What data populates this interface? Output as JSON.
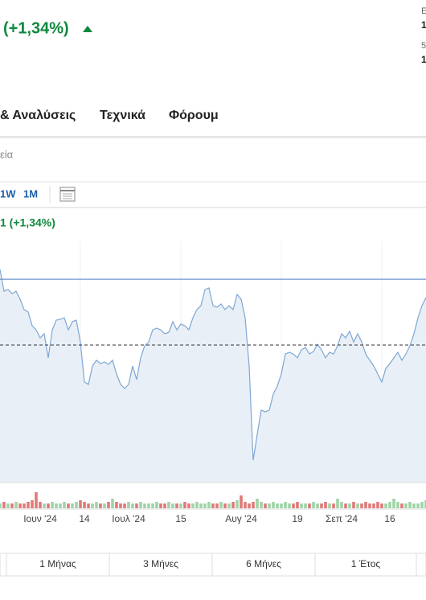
{
  "header": {
    "change": "(+1,34%)",
    "side": [
      "Ε",
      "1",
      "5",
      "1"
    ]
  },
  "tabs": [
    "& Αναλύσεις",
    "Τεχνικά",
    "Φόρουμ"
  ],
  "breadcrumb": "εία",
  "periods": [
    "1W",
    "1M"
  ],
  "chart_change": "1 (+1,34%)",
  "chart_data": {
    "type": "area",
    "categories": [
      null,
      null,
      null,
      null,
      null,
      null,
      null,
      null,
      null,
      null,
      "Ιουν '24",
      null,
      null,
      null,
      null,
      null,
      null,
      null,
      null,
      null,
      null,
      "14",
      null,
      null,
      null,
      null,
      null,
      null,
      null,
      null,
      null,
      null,
      "Ιουλ '24",
      null,
      null,
      null,
      null,
      null,
      null,
      null,
      null,
      null,
      null,
      null,
      null,
      "15",
      null,
      null,
      null,
      null,
      null,
      null,
      null,
      null,
      null,
      null,
      null,
      null,
      null,
      null,
      "Αυγ '24",
      null,
      null,
      null,
      null,
      null,
      null,
      null,
      null,
      null,
      null,
      null,
      null,
      null,
      "19",
      null,
      null,
      null,
      null,
      null,
      null,
      null,
      null,
      null,
      null,
      "Σεπ '24",
      null,
      null,
      null,
      null,
      null,
      null,
      null,
      null,
      null,
      null,
      null,
      "16",
      null,
      null,
      null,
      null,
      null,
      null,
      null,
      null,
      null
    ],
    "series": [
      {
        "color": "#7fa7d4",
        "fill": "#e8eff7",
        "values": [
          88.3,
          79.3,
          80,
          78.3,
          79.3,
          76,
          71.7,
          70.7,
          65,
          63.3,
          60,
          61.7,
          51.7,
          63.3,
          67.3,
          67.7,
          68.3,
          63.3,
          66.7,
          67.3,
          58.3,
          41.7,
          40.7,
          48.3,
          50.7,
          49.3,
          50,
          49,
          50.7,
          45,
          40.7,
          39,
          40.7,
          48.3,
          42.7,
          51.7,
          56.7,
          58.3,
          63.3,
          64,
          63.3,
          61.7,
          62.3,
          66.7,
          63.3,
          65.7,
          65,
          63.3,
          68.3,
          71.7,
          73.3,
          80,
          80.7,
          73.3,
          72.7,
          74,
          71.7,
          73.3,
          71.7,
          78,
          76,
          68.3,
          48.3,
          9.3,
          20,
          30,
          29.3,
          30,
          36.7,
          40,
          45,
          53.3,
          54,
          53.3,
          51.7,
          55,
          56,
          53.3,
          54.3,
          57.3,
          55,
          51.7,
          54,
          53.3,
          56.7,
          61.7,
          60,
          62.7,
          58.3,
          61.7,
          58.3,
          53.3,
          50.7,
          48.3,
          45,
          41.7,
          47.3,
          49.3,
          51.7,
          54,
          50.7,
          53.3,
          56.7,
          61.7,
          68.3,
          73.3,
          76.7
        ]
      }
    ],
    "ylim": [
      0,
      100
    ],
    "hlines": [
      {
        "value": 84.3,
        "color": "#4a7fc1",
        "dashed": false
      },
      {
        "value": 57,
        "color": "#333333",
        "dashed": true
      }
    ],
    "volume": {
      "up_color": "#9fd4a8",
      "down_color": "#e07a7a",
      "vlim": [
        0,
        10
      ],
      "values": [
        3,
        4,
        3,
        3,
        4,
        3,
        3,
        4,
        5,
        10,
        4,
        3,
        3,
        4,
        3,
        3,
        4,
        3,
        3,
        4,
        5,
        4,
        3,
        3,
        4,
        3,
        3,
        4,
        6,
        4,
        3,
        3,
        4,
        3,
        3,
        4,
        3,
        3,
        3,
        4,
        3,
        3,
        4,
        3,
        3,
        3,
        4,
        3,
        3,
        4,
        3,
        3,
        4,
        3,
        3,
        4,
        3,
        3,
        4,
        5,
        8,
        4,
        3,
        4,
        6,
        4,
        3,
        3,
        4,
        3,
        3,
        4,
        3,
        3,
        4,
        3,
        3,
        3,
        4,
        3,
        3,
        4,
        3,
        3,
        6,
        4,
        3,
        3,
        4,
        3,
        3,
        4,
        3,
        3,
        4,
        3,
        3,
        4,
        6,
        4,
        3,
        3,
        4,
        3,
        3,
        4,
        5
      ]
    }
  },
  "ranges": [
    "1 Μήνας",
    "3 Μήνες",
    "6 Μήνες",
    "1 Έτος"
  ]
}
